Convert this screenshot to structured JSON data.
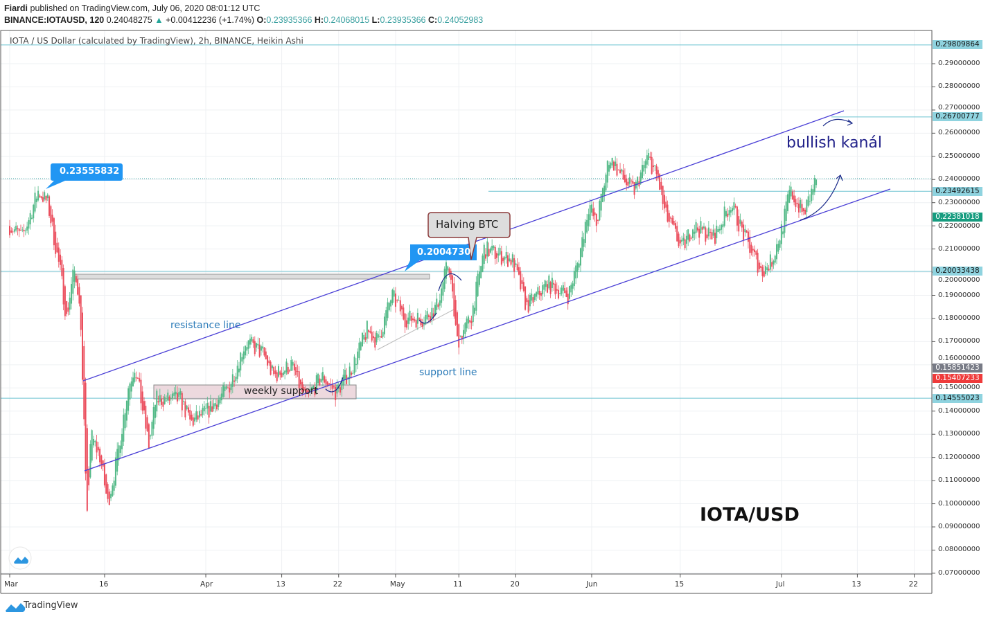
{
  "header": {
    "author": "Fiardi",
    "published": "published on TradingView.com, July 06, 2020 08:01:12 UTC",
    "symbol": "BINANCE:IOTAUSD, 120",
    "last": "0.24048275",
    "arrow": "▲",
    "change": "+0.00412236 (+1.74%)",
    "o_label": "O:",
    "o": "0.23935366",
    "h_label": "H:",
    "h": "0.24068015",
    "l_label": "L:",
    "l": "0.23935366",
    "c_label": "C:",
    "c": "0.24052983"
  },
  "footer": {
    "brand": "TradingView"
  },
  "chart_data": {
    "type": "candlestick",
    "title": "IOTA / US Dollar (calculated by TradingView), 2h, BINANCE, Heikin Ashi",
    "x_unit": "days since Mar 1 2020",
    "x_ticks": [
      {
        "label": "Mar",
        "day": 0
      },
      {
        "label": "16",
        "day": 15
      },
      {
        "label": "Apr",
        "day": 31
      },
      {
        "label": "13",
        "day": 43
      },
      {
        "label": "22",
        "day": 52
      },
      {
        "label": "May",
        "day": 61
      },
      {
        "label": "11",
        "day": 71
      },
      {
        "label": "20",
        "day": 80
      },
      {
        "label": "Jun",
        "day": 92
      },
      {
        "label": "15",
        "day": 106
      },
      {
        "label": "Jul",
        "day": 122
      },
      {
        "label": "13",
        "day": 134
      },
      {
        "label": "22",
        "day": 143
      }
    ],
    "y_ticks": [
      "0.29000000",
      "0.28000000",
      "0.27000000",
      "0.26000000",
      "0.25000000",
      "0.24000000",
      "0.23000000",
      "0.22000000",
      "0.21000000",
      "0.20000000",
      "0.19000000",
      "0.18000000",
      "0.17000000",
      "0.16000000",
      "0.15000000",
      "0.14000000",
      "0.13000000",
      "0.12000000",
      "0.11000000",
      "0.10000000",
      "0.09000000",
      "0.08000000",
      "0.07000000"
    ],
    "ylim": [
      0.07,
      0.3
    ],
    "price_path": [
      [
        0,
        0.22
      ],
      [
        2,
        0.215
      ],
      [
        4.5,
        0.235
      ],
      [
        6,
        0.23
      ],
      [
        8,
        0.2
      ],
      [
        9,
        0.18
      ],
      [
        10,
        0.2
      ],
      [
        11,
        0.19
      ],
      [
        11.6,
        0.15
      ],
      [
        12.2,
        0.09
      ],
      [
        12.8,
        0.13
      ],
      [
        14.3,
        0.12
      ],
      [
        15.5,
        0.1
      ],
      [
        17,
        0.12
      ],
      [
        18.7,
        0.15
      ],
      [
        19.8,
        0.16
      ],
      [
        22,
        0.125
      ],
      [
        23.1,
        0.145
      ],
      [
        27,
        0.145
      ],
      [
        28.6,
        0.135
      ],
      [
        31.3,
        0.14
      ],
      [
        34.6,
        0.15
      ],
      [
        37.3,
        0.17
      ],
      [
        40,
        0.165
      ],
      [
        41.7,
        0.155
      ],
      [
        44.5,
        0.16
      ],
      [
        46.7,
        0.145
      ],
      [
        49.4,
        0.155
      ],
      [
        51.6,
        0.148
      ],
      [
        54.3,
        0.16
      ],
      [
        56.5,
        0.175
      ],
      [
        58.2,
        0.17
      ],
      [
        60.4,
        0.19
      ],
      [
        62.5,
        0.18
      ],
      [
        65.3,
        0.18
      ],
      [
        67.5,
        0.185
      ],
      [
        69.4,
        0.205
      ],
      [
        70.7,
        0.17
      ],
      [
        72.9,
        0.18
      ],
      [
        75,
        0.21
      ],
      [
        79.5,
        0.205
      ],
      [
        81.7,
        0.185
      ],
      [
        85,
        0.195
      ],
      [
        88.3,
        0.19
      ],
      [
        89.9,
        0.205
      ],
      [
        91.6,
        0.23
      ],
      [
        92.7,
        0.22
      ],
      [
        94.8,
        0.25
      ],
      [
        97,
        0.24
      ],
      [
        98.7,
        0.235
      ],
      [
        100.9,
        0.25
      ],
      [
        102.5,
        0.24
      ],
      [
        103.6,
        0.225
      ],
      [
        106.3,
        0.21
      ],
      [
        108,
        0.22
      ],
      [
        111.3,
        0.215
      ],
      [
        114,
        0.23
      ],
      [
        116.2,
        0.215
      ],
      [
        118.9,
        0.2
      ],
      [
        120.5,
        0.205
      ],
      [
        122.2,
        0.22
      ],
      [
        123.3,
        0.235
      ],
      [
        125.5,
        0.225
      ],
      [
        127.5,
        0.24
      ]
    ],
    "levels": [
      {
        "label": "0.29809864",
        "price": 0.29809864,
        "color": "#8fd3df",
        "text": "#111"
      },
      {
        "label": "0.26700777",
        "price": 0.26700777,
        "color": "#8fd3df",
        "text": "#111"
      },
      {
        "label": "0.23492615",
        "price": 0.23492615,
        "color": "#8fd3df",
        "text": "#111"
      },
      {
        "label": "0.22381018",
        "price": 0.22381018,
        "color": "#169c7f",
        "text": "#fff"
      },
      {
        "label": "0.20033438",
        "price": 0.20033438,
        "color": "#8fd3df",
        "text": "#111"
      },
      {
        "label": "0.15851423",
        "price": 0.15851423,
        "color": "#787b86",
        "text": "#fff"
      },
      {
        "label": "0.15407233",
        "price": 0.15407233,
        "color": "#ef3b3b",
        "text": "#fff"
      },
      {
        "label": "0.14555023",
        "price": 0.14555023,
        "color": "#8fd3df",
        "text": "#111"
      }
    ],
    "annotations": {
      "callout1": "0.23555832",
      "callout2": "0.2004730",
      "halving": "Halving BTC",
      "resistance": "resistance line",
      "support": "support line",
      "weekly": "weekly support",
      "bullish": "bullish kanál",
      "pair": "IOTA/USD"
    },
    "colors": {
      "up": "#53b987",
      "down": "#eb4d5c",
      "channel": "#4a3fd6"
    }
  }
}
